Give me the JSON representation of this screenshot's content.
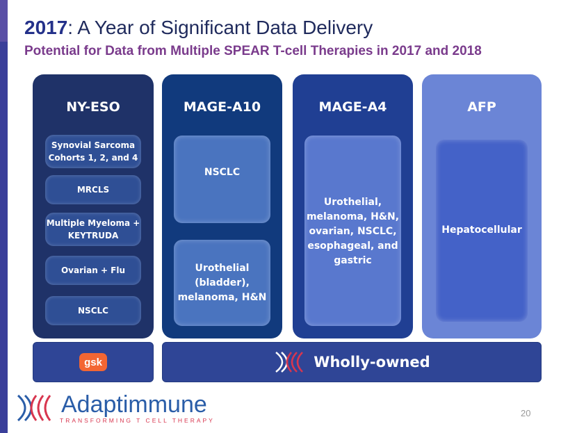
{
  "slide": {
    "title_year": "2017",
    "title_rest": ": A Year of Significant Data Delivery",
    "subtitle": "Potential for Data from Multiple SPEAR T-cell Therapies in 2017 and 2018",
    "page_number": "20"
  },
  "columns": [
    {
      "title": "NY-ESO",
      "items": [
        {
          "lines": [
            "Synovial Sarcoma",
            "Cohorts 1, 2, and 4"
          ]
        },
        {
          "lines": [
            "MRCLS"
          ]
        },
        {
          "lines": [
            "Multiple Myeloma +",
            "KEYTRUDA"
          ]
        },
        {
          "lines": [
            "Ovarian + Flu"
          ]
        },
        {
          "lines": [
            "NSCLC"
          ]
        }
      ]
    },
    {
      "title": "MAGE-A10",
      "items": [
        {
          "lines": [
            "NSCLC"
          ]
        },
        {
          "lines": [
            "Urothelial",
            "(bladder),",
            "melanoma, H&N"
          ]
        }
      ]
    },
    {
      "title": "MAGE-A4",
      "items": [
        {
          "lines": [
            "Urothelial,",
            "melanoma, H&N,",
            "ovarian, NSCLC,",
            "esophageal, and",
            "gastric"
          ]
        }
      ]
    },
    {
      "title": "AFP",
      "items": [
        {
          "lines": [
            "Hepatocellular"
          ]
        }
      ]
    }
  ],
  "ownership": {
    "partner_logo_text": "gsk",
    "wholly_owned_label": "Wholly-owned"
  },
  "footer": {
    "brand_name": "Adaptimmune",
    "tagline": "TRANSFORMING T CELL THERAPY"
  },
  "colors": {
    "title_blue": "#24318a",
    "subtitle_purple": "#7a3b8c",
    "gsk_orange": "#f36633",
    "brand_red": "#d8364f",
    "brand_blue": "#2a5da8"
  },
  "icons": {
    "partner_logo": "gsk-logo-icon",
    "wholly_owned": "adaptimmune-helix-icon",
    "brand": "adaptimmune-helix-icon"
  }
}
